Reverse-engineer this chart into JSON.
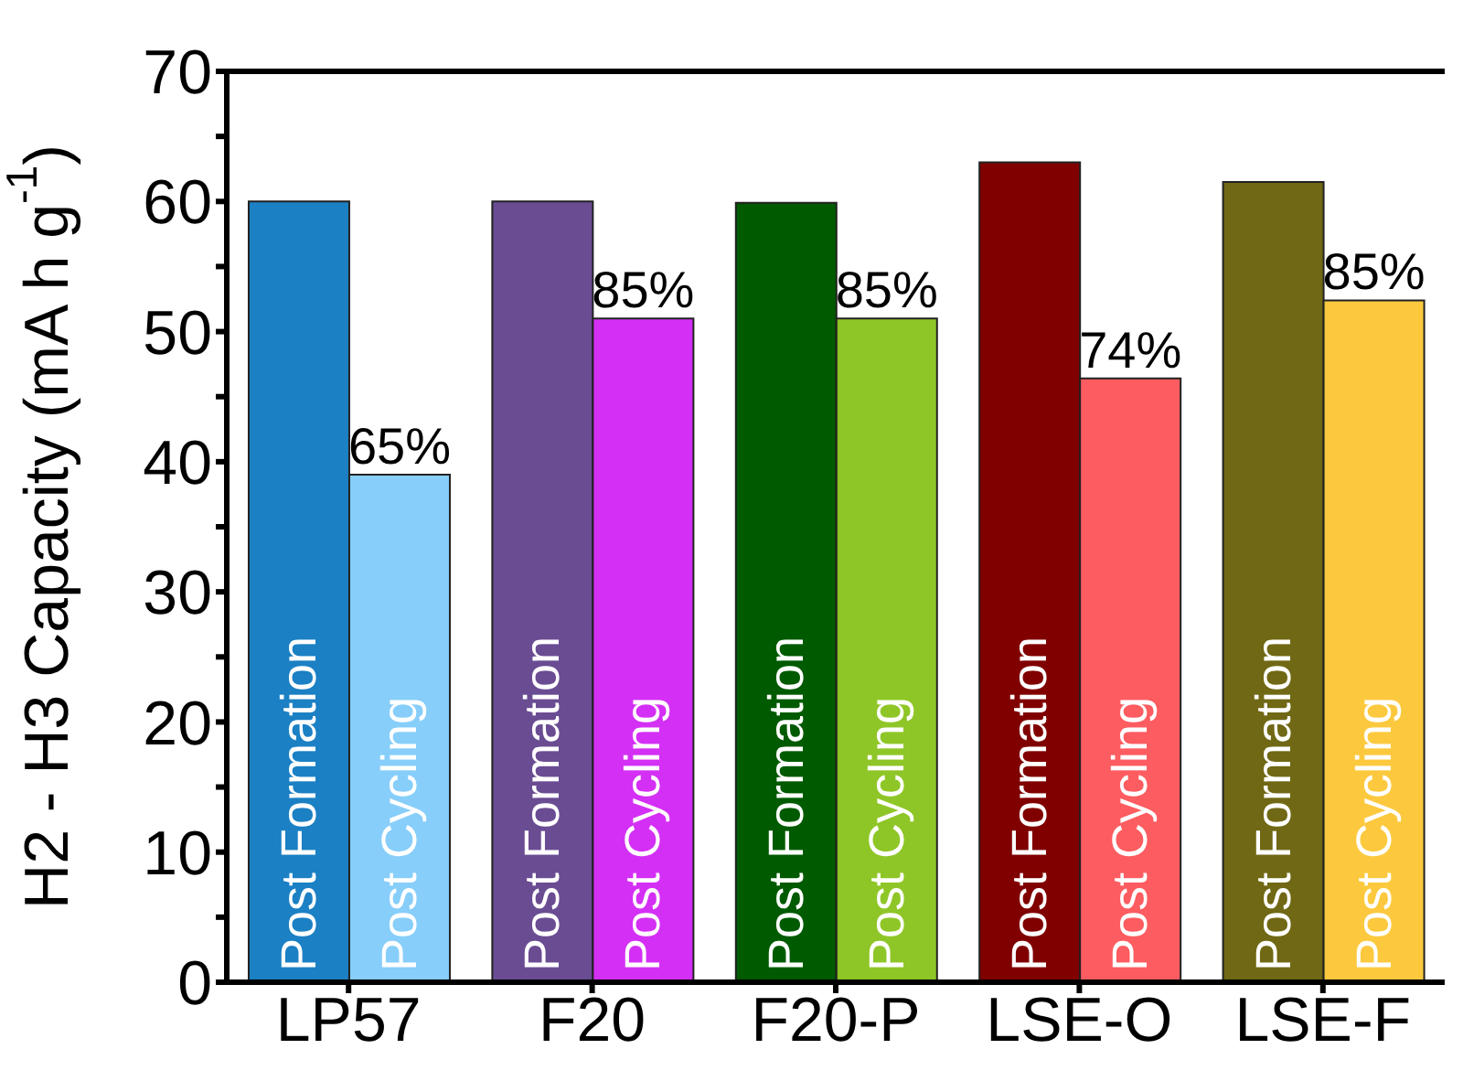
{
  "chart_data": {
    "type": "bar",
    "ylabel": "H2 - H3 Capacity (mA h g$^{-1}$)",
    "categories": [
      "LP57",
      "F20",
      "F20-P",
      "LSE-O",
      "LSE-F"
    ],
    "series": [
      {
        "name": "Post Formation",
        "colors": [
          "#1b80c4",
          "#6a4c93",
          "#005a00",
          "#800000",
          "#706814"
        ],
        "values": [
          60,
          60,
          59.9,
          63,
          61.5
        ]
      },
      {
        "name": "Post Cycling",
        "colors": [
          "#87cefa",
          "#d42ff5",
          "#8fc627",
          "#fd5c60",
          "#fcc93e"
        ],
        "values": [
          39,
          51,
          51,
          46.4,
          52.4
        ]
      }
    ],
    "annotations": [
      {
        "text": "65%",
        "x": "LP57",
        "y": 39
      },
      {
        "text": "85%",
        "x": "F20",
        "y": 51
      },
      {
        "text": "85%",
        "x": "F20-P",
        "y": 51
      },
      {
        "text": "74%",
        "x": "LSE-O",
        "y": 46.4
      },
      {
        "text": "85%",
        "x": "LSE-F",
        "y": 52.4
      }
    ],
    "ylim": [
      0,
      70
    ],
    "yticks": [
      0,
      {
        "value": 5,
        "label": null
      },
      10,
      {
        "value": 15,
        "label": null
      },
      20,
      {
        "value": 25,
        "label": null
      },
      30,
      {
        "value": 35,
        "label": null
      },
      40,
      {
        "value": 45,
        "label": null
      },
      50,
      {
        "value": 55,
        "label": null
      },
      60,
      {
        "value": 65,
        "label": null
      },
      70
    ],
    "grid": false,
    "legend": false
  }
}
